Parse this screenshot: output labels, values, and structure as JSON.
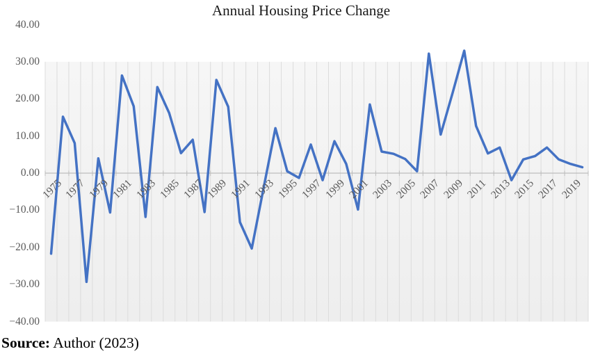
{
  "title": "Annual Housing Price Change",
  "source": {
    "label": "Source:",
    "text": " Author (2023)"
  },
  "chart_data": {
    "type": "line",
    "title": "Annual Housing Price Change",
    "xlabel": "",
    "ylabel": "",
    "x": [
      1975,
      1976,
      1977,
      1978,
      1979,
      1980,
      1981,
      1982,
      1983,
      1984,
      1985,
      1986,
      1987,
      1988,
      1989,
      1990,
      1991,
      1992,
      1993,
      1994,
      1995,
      1996,
      1997,
      1998,
      1999,
      2000,
      2001,
      2002,
      2003,
      2004,
      2005,
      2006,
      2007,
      2008,
      2009,
      2010,
      2011,
      2012,
      2013,
      2014,
      2015,
      2016,
      2017,
      2018,
      2019,
      2020
    ],
    "values": [
      -21.7,
      15.2,
      8.1,
      -29.3,
      4.0,
      -10.6,
      26.3,
      18.0,
      -11.8,
      23.2,
      16.2,
      5.4,
      9.0,
      -10.5,
      25.1,
      17.9,
      -13.2,
      -20.3,
      -4.0,
      12.1,
      0.5,
      -1.3,
      7.7,
      -1.9,
      8.6,
      2.5,
      -9.8,
      18.5,
      5.8,
      5.2,
      3.8,
      0.5,
      32.2,
      10.4,
      21.5,
      33.0,
      12.7,
      5.3,
      6.9,
      -1.9,
      3.7,
      4.6,
      6.9,
      3.7,
      2.5,
      1.6
    ],
    "ylim": [
      -40,
      40
    ],
    "y_tick_step": 10,
    "y_tick_labels": [
      "40.00",
      "30.00",
      "20.00",
      "10.00",
      "0.00",
      "−10.00",
      "−20.00",
      "−30.00",
      "−40.00"
    ],
    "x_tick_labels": [
      "1975",
      "1977",
      "1979",
      "1981",
      "1983",
      "1985",
      "1987",
      "1989",
      "1991",
      "1993",
      "1995",
      "1997",
      "1999",
      "2001",
      "2003",
      "2005",
      "2007",
      "2009",
      "2011",
      "2013",
      "2015",
      "2017",
      "2019"
    ],
    "grid": "vertical-only",
    "legend": "none",
    "plot_fill_top_value": 30,
    "colors": {
      "line": "#4472C4",
      "plot_fill_light": "#f6f6f6",
      "plot_fill_dark": "#eeeeee",
      "gridline": "#dcdcdc",
      "axis": "#bdbdbd",
      "tick_label": "#595959",
      "title": "#1a1a1a"
    }
  }
}
